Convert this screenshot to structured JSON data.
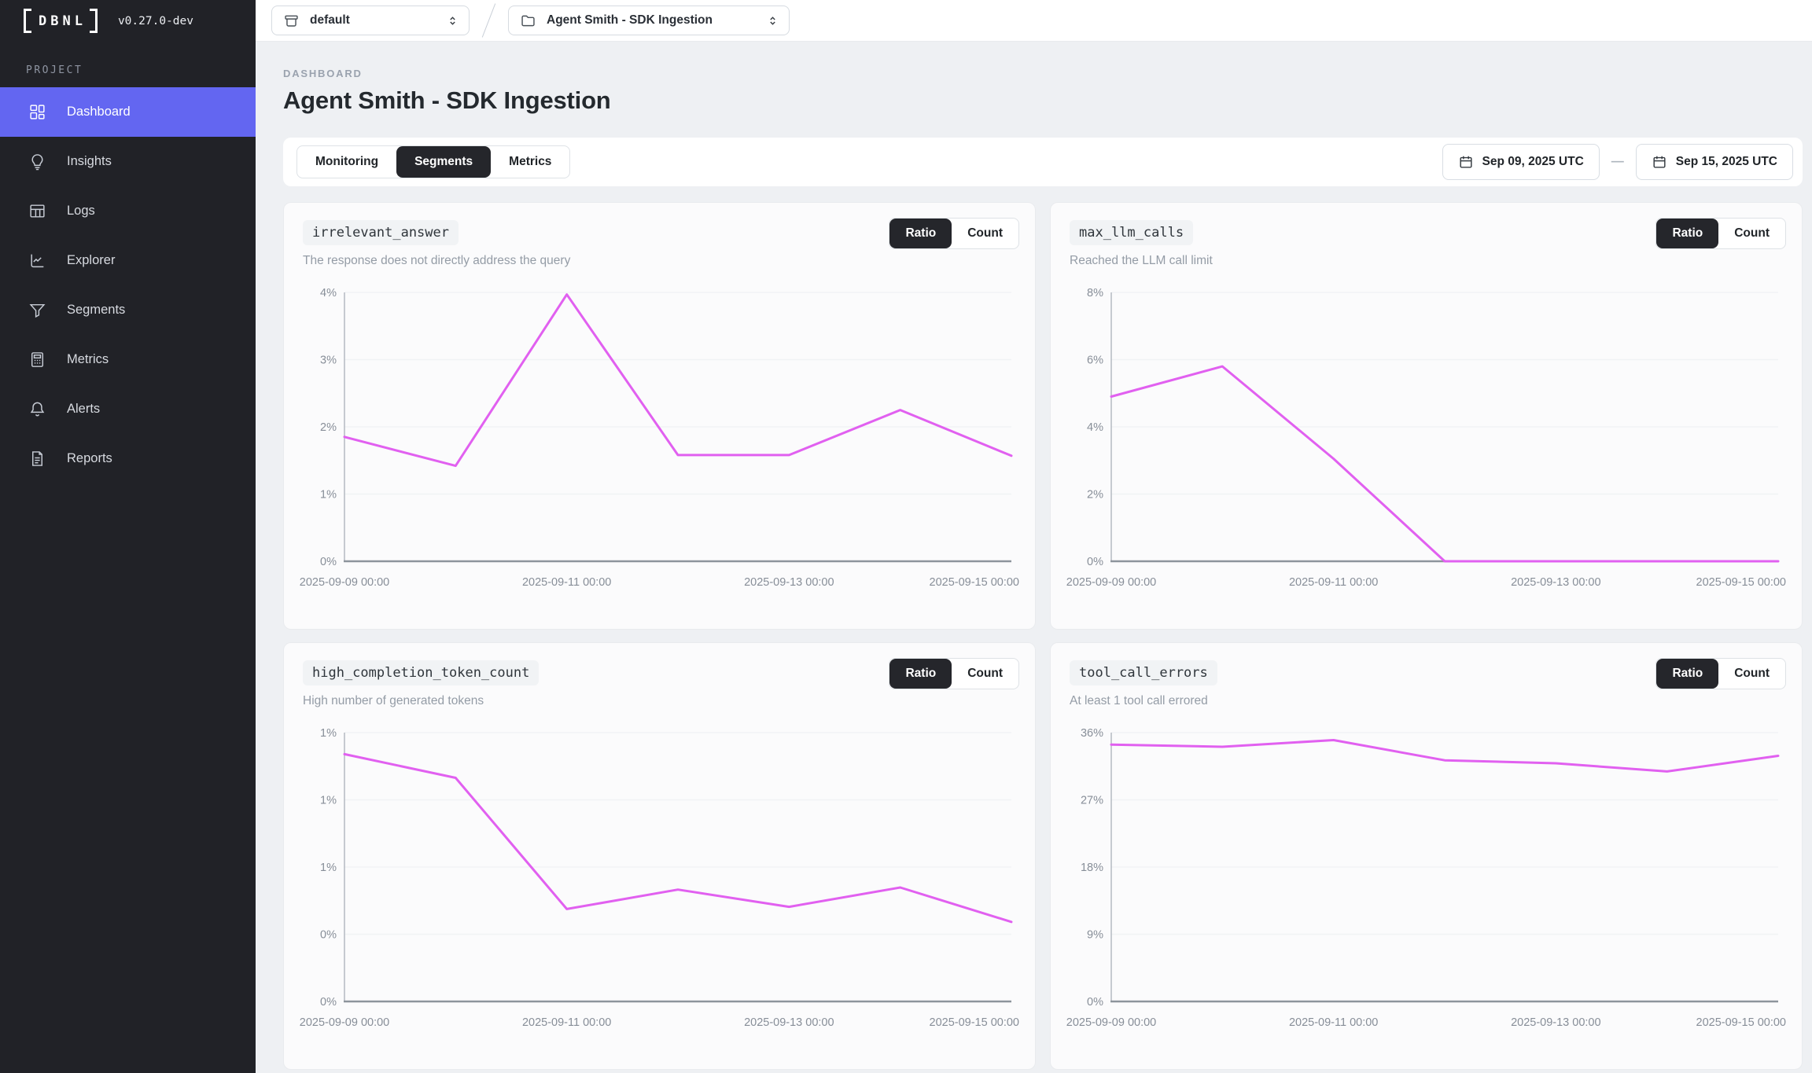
{
  "app": {
    "logo_text": "DBNL",
    "version": "v0.27.0-dev"
  },
  "topbar": {
    "env_selector": {
      "value": "default",
      "icon": "archive-box-icon",
      "chevron": "selector-icon"
    },
    "separator": "/",
    "project_selector": {
      "value": "Agent Smith - SDK Ingestion",
      "icon": "folder-icon",
      "chevron": "selector-icon"
    }
  },
  "sidebar": {
    "section_label": "PROJECT",
    "items": [
      {
        "label": "Dashboard",
        "icon": "dashboard-grid-icon",
        "active": true
      },
      {
        "label": "Insights",
        "icon": "lightbulb-icon",
        "active": false
      },
      {
        "label": "Logs",
        "icon": "table-icon",
        "active": false
      },
      {
        "label": "Explorer",
        "icon": "chart-line-icon",
        "active": false
      },
      {
        "label": "Segments",
        "icon": "funnel-icon",
        "active": false
      },
      {
        "label": "Metrics",
        "icon": "calculator-icon",
        "active": false
      },
      {
        "label": "Alerts",
        "icon": "bell-icon",
        "active": false
      },
      {
        "label": "Reports",
        "icon": "document-icon",
        "active": false
      }
    ]
  },
  "page": {
    "breadcrumb": "DASHBOARD",
    "title": "Agent Smith - SDK Ingestion"
  },
  "toolbar": {
    "tabs": [
      {
        "label": "Monitoring",
        "active": false
      },
      {
        "label": "Segments",
        "active": true
      },
      {
        "label": "Metrics",
        "active": false
      }
    ],
    "date_range": {
      "start": "Sep 09, 2025 UTC",
      "separator": "—",
      "end": "Sep 15, 2025 UTC"
    }
  },
  "cards": [
    {
      "title": "irrelevant_answer",
      "subtitle": "The response does not directly address the query",
      "ratio_label": "Ratio",
      "count_label": "Count",
      "active_toggle": "Ratio"
    },
    {
      "title": "max_llm_calls",
      "subtitle": "Reached the LLM call limit",
      "ratio_label": "Ratio",
      "count_label": "Count",
      "active_toggle": "Ratio"
    },
    {
      "title": "high_completion_token_count",
      "subtitle": "High number of generated tokens",
      "ratio_label": "Ratio",
      "count_label": "Count",
      "active_toggle": "Ratio"
    },
    {
      "title": "tool_call_errors",
      "subtitle": "At least 1 tool call errored",
      "ratio_label": "Ratio",
      "count_label": "Count",
      "active_toggle": "Ratio"
    }
  ],
  "chart_data": [
    {
      "type": "line",
      "title": "irrelevant_answer ratio",
      "x_dates": [
        "2025-09-09",
        "2025-09-10",
        "2025-09-11",
        "2025-09-12",
        "2025-09-13",
        "2025-09-14",
        "2025-09-15"
      ],
      "x_labels": [
        "2025-09-09 00:00",
        "2025-09-11 00:00",
        "2025-09-13 00:00",
        "2025-09-15 00:00"
      ],
      "values_pct": [
        1.85,
        1.42,
        3.97,
        1.58,
        1.58,
        2.25,
        1.57
      ],
      "y_tick_labels": [
        "0%",
        "1%",
        "2%",
        "3%",
        "4%"
      ],
      "ymax": 4,
      "ylim": [
        0,
        4
      ],
      "grid": true,
      "legend": "none",
      "line_color": "#e160f0"
    },
    {
      "type": "line",
      "title": "max_llm_calls ratio",
      "x_dates": [
        "2025-09-09",
        "2025-09-10",
        "2025-09-11",
        "2025-09-12",
        "2025-09-13",
        "2025-09-14",
        "2025-09-15"
      ],
      "x_labels": [
        "2025-09-09 00:00",
        "2025-09-11 00:00",
        "2025-09-13 00:00",
        "2025-09-15 00:00"
      ],
      "values_pct": [
        4.9,
        5.8,
        3.05,
        0,
        0,
        0,
        0
      ],
      "y_tick_labels": [
        "0%",
        "2%",
        "4%",
        "6%",
        "8%"
      ],
      "ymax": 8,
      "ylim": [
        0,
        8
      ],
      "grid": true,
      "legend": "none",
      "line_color": "#e160f0"
    },
    {
      "type": "line",
      "title": "high_completion_token_count ratio",
      "x_dates": [
        "2025-09-09",
        "2025-09-10",
        "2025-09-11",
        "2025-09-12",
        "2025-09-13",
        "2025-09-14",
        "2025-09-15"
      ],
      "x_labels": [
        "2025-09-09 00:00",
        "2025-09-11 00:00",
        "2025-09-13 00:00",
        "2025-09-15 00:00"
      ],
      "values_pct": [
        1.15,
        1.04,
        0.43,
        0.52,
        0.44,
        0.53,
        0.37
      ],
      "y_tick_labels": [
        "0%",
        "0%",
        "1%",
        "1%",
        "1%"
      ],
      "ymax": 1.25,
      "ylim": [
        0,
        1.25
      ],
      "grid": true,
      "legend": "none",
      "line_color": "#e160f0"
    },
    {
      "type": "line",
      "title": "tool_call_errors ratio",
      "x_dates": [
        "2025-09-09",
        "2025-09-10",
        "2025-09-11",
        "2025-09-12",
        "2025-09-13",
        "2025-09-14",
        "2025-09-15"
      ],
      "x_labels": [
        "2025-09-09 00:00",
        "2025-09-11 00:00",
        "2025-09-13 00:00",
        "2025-09-15 00:00"
      ],
      "values_pct": [
        34.4,
        34.1,
        35.0,
        32.3,
        31.9,
        30.8,
        32.9
      ],
      "y_tick_labels": [
        "0%",
        "9%",
        "18%",
        "27%",
        "36%"
      ],
      "ymax": 36,
      "ylim": [
        0,
        36
      ],
      "grid": true,
      "legend": "none",
      "line_color": "#e160f0"
    }
  ],
  "colors": {
    "accent_purple": "#6366f1",
    "line_magenta": "#e160f0",
    "sidebar_dark": "#212227",
    "active_dark": "#25262b",
    "page_bg": "#eef0f3"
  }
}
